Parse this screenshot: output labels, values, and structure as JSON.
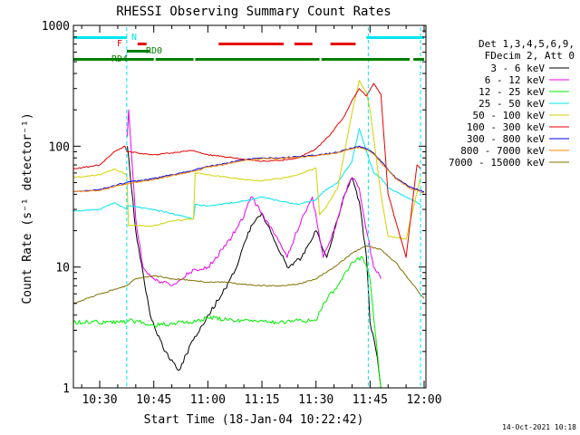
{
  "chart_data": {
    "type": "line",
    "title": "RHESSI Observing Summary Count Rates",
    "xlabel": "Start Time (18-Jan-04 10:22:42)",
    "ylabel": "Count Rate (s⁻¹ detector⁻¹)",
    "y_scale": "log",
    "ylim": [
      1,
      1000
    ],
    "xlim": [
      "10:22:42",
      "12:00:30"
    ],
    "x_ticks": [
      "10:30",
      "10:45",
      "11:00",
      "11:15",
      "11:30",
      "11:45",
      "12:00"
    ],
    "y_ticks": [
      "1",
      "10",
      "100",
      "1000"
    ],
    "legend_placement": "right",
    "legend_header": [
      "Det 1,3,4,5,6,9,",
      "FDecim 2, Att 0"
    ],
    "footer_date": "14-Oct-2021 10:18",
    "flag_labels": {
      "n": "N",
      "f": "F",
      "rd0": "RD0",
      "rd4": "RD4"
    },
    "flags": {
      "night": {
        "color": "#00e5ee",
        "intervals": [
          [
            "10:22:42",
            "10:37:30"
          ],
          [
            "11:44:00",
            "12:00:00"
          ]
        ]
      },
      "flare": {
        "color": "#e80000",
        "intervals": [
          [
            "10:40:30",
            "10:43:00"
          ],
          [
            "11:03:00",
            "11:21:00"
          ],
          [
            "11:24:00",
            "11:29:00"
          ],
          [
            "11:34:00",
            "11:41:00"
          ]
        ]
      },
      "rd0": {
        "color": "#007f00",
        "intervals": [
          [
            "10:37:30",
            "10:44:00"
          ]
        ]
      },
      "rd4": {
        "color": "#007f00",
        "intervals": [
          [
            "10:22:42",
            "10:45:00"
          ],
          [
            "10:45:30",
            "10:56:00"
          ],
          [
            "10:56:30",
            "11:31:00"
          ],
          [
            "11:31:30",
            "11:56:00"
          ],
          [
            "11:57:00",
            "12:00:00"
          ]
        ]
      }
    },
    "night_lines": [
      "10:37:30",
      "11:44:30",
      "11:59:00"
    ],
    "series": [
      {
        "name": "3 - 6 keV",
        "color": "#000000",
        "x": [
          "10:37:40",
          "10:40:00",
          "10:42:00",
          "10:44:00",
          "10:48:00",
          "10:52:00",
          "10:56:00",
          "11:00:00",
          "11:04:00",
          "11:08:00",
          "11:12:00",
          "11:15:00",
          "11:18:00",
          "11:22:00",
          "11:26:00",
          "11:30:00",
          "11:33:00",
          "11:36:00",
          "11:38:00",
          "11:40:00",
          "11:42:00",
          "11:44:00",
          "11:45:00",
          "11:47:00",
          "11:48:00"
        ],
        "y": [
          100,
          20,
          9,
          4,
          2,
          1.4,
          2.5,
          4,
          6,
          10,
          22,
          28,
          18,
          10,
          12,
          20,
          12,
          25,
          40,
          55,
          35,
          12,
          3.5,
          1.8,
          1
        ]
      },
      {
        "name": "6 - 12 keV",
        "color": "#ee00ee",
        "x": [
          "10:37:40",
          "10:38:00",
          "10:40:00",
          "10:42:00",
          "10:45:00",
          "10:50:00",
          "10:55:00",
          "11:00:00",
          "11:05:00",
          "11:10:00",
          "11:12:00",
          "11:15:00",
          "11:18:00",
          "11:22:00",
          "11:26:00",
          "11:29:00",
          "11:32:00",
          "11:35:00",
          "11:38:00",
          "11:40:00",
          "11:42:00",
          "11:44:00",
          "11:46:00",
          "11:48:00"
        ],
        "y": [
          120,
          200,
          25,
          10,
          8,
          7,
          9,
          10,
          15,
          26,
          38,
          28,
          20,
          12,
          25,
          38,
          12,
          20,
          40,
          55,
          45,
          20,
          10,
          8
        ]
      },
      {
        "name": "12 - 25 keV",
        "color": "#00ee00",
        "x": [
          "10:22:42",
          "10:37:30",
          "10:37:40",
          "10:42:00",
          "10:45:00",
          "10:55:00",
          "11:00:00",
          "11:10:00",
          "11:20:00",
          "11:25:00",
          "11:30:00",
          "11:32:00",
          "11:36:00",
          "11:40:00",
          "11:43:00",
          "11:45:00",
          "11:47:00",
          "11:48:00"
        ],
        "y": [
          3.5,
          3.5,
          3.6,
          3.5,
          3.3,
          3.5,
          3.8,
          3.6,
          3.5,
          3.6,
          3.6,
          5,
          7,
          11,
          12,
          8,
          2,
          1
        ]
      },
      {
        "name": "25 - 50 keV",
        "color": "#00e5ee",
        "x": [
          "10:22:42",
          "10:30:00",
          "10:34:00",
          "10:37:30",
          "10:38:00",
          "10:45:00",
          "10:56:00",
          "10:56:30",
          "11:00:00",
          "11:10:00",
          "11:15:00",
          "11:20:00",
          "11:25:00",
          "11:30:00",
          "11:32:00",
          "11:36:00",
          "11:40:00",
          "11:42:00",
          "11:44:00",
          "11:46:00",
          "11:48:00",
          "11:50:00",
          "11:55:00",
          "11:59:00"
        ],
        "y": [
          29,
          30,
          34,
          30,
          32,
          30,
          25,
          33,
          32,
          35,
          38,
          35,
          33,
          36,
          42,
          50,
          75,
          140,
          90,
          60,
          55,
          45,
          38,
          33
        ]
      },
      {
        "name": "50 - 100 keV",
        "color": "#d2d200",
        "x": [
          "10:22:42",
          "10:30:00",
          "10:34:00",
          "10:37:30",
          "10:38:00",
          "10:45:00",
          "10:50:00",
          "10:56:00",
          "10:56:30",
          "11:00:00",
          "11:10:00",
          "11:15:00",
          "11:20:00",
          "11:25:00",
          "11:30:00",
          "11:31:00",
          "11:33:00",
          "11:36:00",
          "11:40:00",
          "11:42:00",
          "11:44:00",
          "11:45:00",
          "11:48:00",
          "11:50:00",
          "11:55:00",
          "11:59:00"
        ],
        "y": [
          55,
          58,
          65,
          58,
          22,
          22,
          24,
          25,
          60,
          58,
          53,
          52,
          54,
          58,
          66,
          27,
          32,
          45,
          190,
          350,
          280,
          200,
          40,
          18,
          17,
          55
        ]
      },
      {
        "name": "100 - 300 keV",
        "color": "#e80000",
        "x": [
          "10:22:42",
          "10:30:00",
          "10:34:00",
          "10:37:00",
          "10:37:30",
          "10:45:00",
          "10:50:00",
          "10:56:00",
          "11:00:00",
          "11:10:00",
          "11:15:00",
          "11:20:00",
          "11:25:00",
          "11:30:00",
          "11:34:00",
          "11:38:00",
          "11:40:00",
          "11:42:00",
          "11:44:00",
          "11:46:00",
          "11:48:00",
          "11:50:00",
          "11:55:00",
          "11:58:00",
          "11:59:00"
        ],
        "y": [
          65,
          70,
          90,
          100,
          90,
          85,
          88,
          92,
          85,
          78,
          75,
          76,
          80,
          95,
          125,
          180,
          240,
          300,
          260,
          330,
          270,
          40,
          12,
          70,
          65
        ]
      },
      {
        "name": "300 - 800 keV",
        "color": "#0000dd",
        "x": [
          "10:22:42",
          "10:30:00",
          "10:35:00",
          "10:37:30",
          "10:45:00",
          "10:50:00",
          "10:55:00",
          "11:00:00",
          "11:05:00",
          "11:10:00",
          "11:15:00",
          "11:20:00",
          "11:25:00",
          "11:30:00",
          "11:35:00",
          "11:40:00",
          "11:42:00",
          "11:44:00",
          "11:46:00",
          "11:48:00",
          "11:52:00",
          "11:56:00",
          "12:00:00"
        ],
        "y": [
          42,
          44,
          48,
          50,
          54,
          58,
          62,
          68,
          72,
          77,
          80,
          80,
          82,
          84,
          88,
          96,
          100,
          95,
          88,
          75,
          55,
          46,
          42
        ]
      },
      {
        "name": "800 - 7000 keV",
        "color": "#ff8800",
        "x": [
          "10:22:42",
          "10:30:00",
          "10:35:00",
          "10:37:30",
          "10:45:00",
          "10:50:00",
          "10:55:00",
          "11:00:00",
          "11:05:00",
          "11:10:00",
          "11:15:00",
          "11:20:00",
          "11:25:00",
          "11:30:00",
          "11:35:00",
          "11:40:00",
          "11:42:00",
          "11:44:00",
          "11:46:00",
          "11:48:00",
          "11:52:00",
          "11:56:00",
          "12:00:00"
        ],
        "y": [
          42,
          43,
          47,
          49,
          53,
          57,
          61,
          67,
          71,
          76,
          79,
          79,
          81,
          83,
          87,
          95,
          98,
          93,
          86,
          73,
          54,
          45,
          41
        ]
      },
      {
        "name": "7000 - 15000 keV",
        "color": "#807000",
        "x": [
          "10:22:42",
          "10:30:00",
          "10:37:30",
          "10:40:00",
          "10:45:00",
          "10:50:00",
          "10:55:00",
          "11:00:00",
          "11:05:00",
          "11:10:00",
          "11:15:00",
          "11:20:00",
          "11:25:00",
          "11:30:00",
          "11:35:00",
          "11:40:00",
          "11:44:00",
          "11:48:00",
          "11:52:00",
          "11:55:00",
          "11:58:00",
          "12:00:00"
        ],
        "y": [
          5,
          6,
          7,
          8,
          8.5,
          8,
          7.8,
          7.5,
          7.5,
          7.2,
          7,
          7,
          7.2,
          8,
          10,
          13,
          15,
          14,
          11,
          8.5,
          6.5,
          5.5
        ]
      }
    ]
  }
}
